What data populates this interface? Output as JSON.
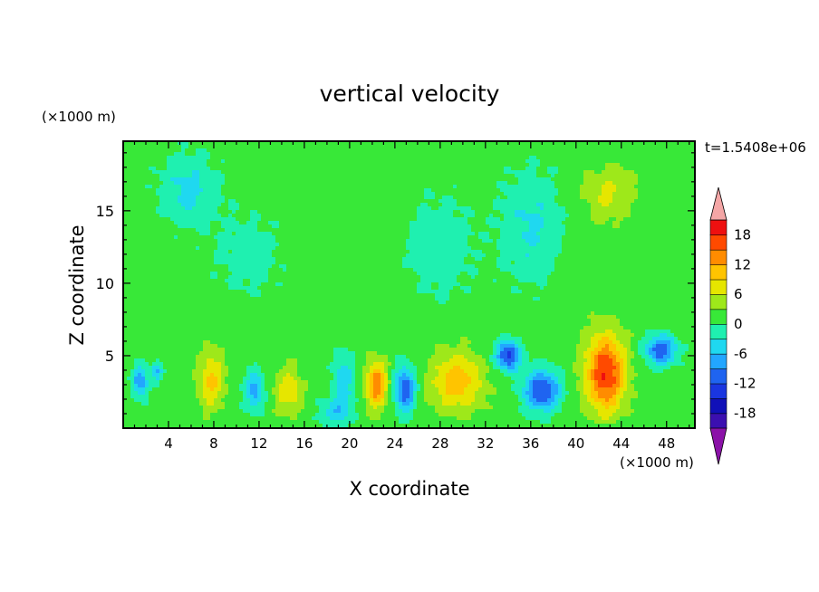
{
  "chart_data": {
    "type": "heatmap",
    "title": "vertical velocity",
    "xlabel": "X coordinate",
    "ylabel": "Z coordinate",
    "x_unit_label": "(×1000 m)",
    "y_unit_label": "(×1000 m)",
    "time_label": "t=1.5408e+06",
    "xlim": [
      0,
      50.5
    ],
    "ylim": [
      0,
      19.8
    ],
    "x_ticks": [
      4,
      8,
      12,
      16,
      20,
      24,
      28,
      32,
      36,
      40,
      44,
      48
    ],
    "y_ticks": [
      5,
      10,
      15
    ],
    "colorbar": {
      "tick_labels": [
        18,
        12,
        6,
        0,
        -6,
        -12,
        -18
      ],
      "levels": [
        -21,
        -18,
        -15,
        -12,
        -9,
        -6,
        -3,
        0,
        3,
        6,
        9,
        12,
        15,
        18,
        21
      ],
      "colors": [
        "#7a0fa8",
        "#3b0fb0",
        "#1010b8",
        "#1a36e0",
        "#1f64f0",
        "#22a6ff",
        "#1fd8f0",
        "#1ff0b0",
        "#38e838",
        "#9ee81a",
        "#e6e600",
        "#ffc400",
        "#ff8c00",
        "#ff4a00",
        "#ee1010",
        "#f0a0a0"
      ],
      "under_color": "#8b12a8",
      "over_color": "#f4a6a6"
    },
    "background_value": 1.5,
    "features": [
      {
        "kind": "updraft",
        "x": 7.8,
        "z": 3.3,
        "peak": 8.5,
        "sx": 1.1,
        "sz": 1.9
      },
      {
        "kind": "updraft",
        "x": 14.6,
        "z": 2.6,
        "peak": 7.0,
        "sx": 1.2,
        "sz": 1.5
      },
      {
        "kind": "updraft",
        "x": 22.4,
        "z": 3.0,
        "peak": 13.0,
        "sx": 0.9,
        "sz": 1.6
      },
      {
        "kind": "updraft",
        "x": 29.5,
        "z": 3.2,
        "peak": 9.5,
        "sx": 2.3,
        "sz": 2.0
      },
      {
        "kind": "updraft",
        "x": 42.6,
        "z": 3.8,
        "peak": 17.0,
        "sx": 1.7,
        "sz": 2.6
      },
      {
        "kind": "updraft",
        "x": 43.0,
        "z": 16.2,
        "peak": 5.0,
        "sx": 2.3,
        "sz": 1.8
      },
      {
        "kind": "downdraft",
        "x": 1.5,
        "z": 3.2,
        "peak": -10.0,
        "sx": 0.7,
        "sz": 1.1
      },
      {
        "kind": "downdraft",
        "x": 3.0,
        "z": 3.9,
        "peak": -7.5,
        "sx": 0.5,
        "sz": 0.7
      },
      {
        "kind": "downdraft",
        "x": 11.6,
        "z": 2.6,
        "peak": -8.5,
        "sx": 0.9,
        "sz": 1.4
      },
      {
        "kind": "downdraft",
        "x": 24.9,
        "z": 2.7,
        "peak": -13.0,
        "sx": 0.9,
        "sz": 1.6
      },
      {
        "kind": "downdraft",
        "x": 34.0,
        "z": 5.0,
        "peak": -15.0,
        "sx": 1.1,
        "sz": 1.0
      },
      {
        "kind": "downdraft",
        "x": 37.0,
        "z": 2.6,
        "peak": -14.0,
        "sx": 1.6,
        "sz": 1.4
      },
      {
        "kind": "downdraft",
        "x": 47.5,
        "z": 5.4,
        "peak": -13.0,
        "sx": 1.4,
        "sz": 1.0
      },
      {
        "kind": "downdraft",
        "x": 19.5,
        "z": 3.3,
        "peak": -6.5,
        "sx": 1.0,
        "sz": 2.0
      },
      {
        "kind": "downdraft",
        "x": 18.7,
        "z": 1.0,
        "peak": -6.0,
        "sx": 1.4,
        "sz": 1.0
      },
      {
        "kind": "downdraft",
        "x": 5.8,
        "z": 16.5,
        "peak": -5.5,
        "sx": 2.6,
        "sz": 2.4
      },
      {
        "kind": "downdraft",
        "x": 36.0,
        "z": 14.0,
        "peak": -5.0,
        "sx": 2.7,
        "sz": 3.8
      },
      {
        "kind": "downdraft",
        "x": 28.0,
        "z": 12.5,
        "peak": -3.8,
        "sx": 3.0,
        "sz": 3.5
      },
      {
        "kind": "downdraft",
        "x": 11.0,
        "z": 12.0,
        "peak": -3.0,
        "sx": 3.0,
        "sz": 3.0
      }
    ]
  }
}
